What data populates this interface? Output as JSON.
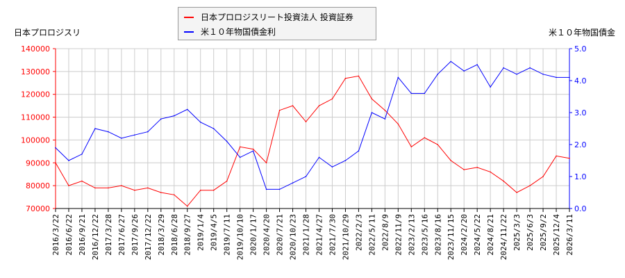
{
  "chart_data": {
    "type": "line",
    "left_axis_label": "日本プロロジスリ",
    "right_axis_label": "米１０年物国債金",
    "legend_placement": "top-center",
    "grid": true,
    "x": [
      "2016/3/22",
      "2016/6/22",
      "2016/9/21",
      "2016/12/22",
      "2017/3/28",
      "2017/6/27",
      "2017/9/26",
      "2017/12/22",
      "2018/3/29",
      "2018/6/28",
      "2018/9/27",
      "2019/1/4",
      "2019/4/5",
      "2019/7/11",
      "2019/10/10",
      "2020/1/17",
      "2020/4/20",
      "2020/7/21",
      "2020/10/23",
      "2021/1/28",
      "2021/4/27",
      "2021/7/30",
      "2021/10/29",
      "2022/2/3",
      "2022/5/11",
      "2022/8/9",
      "2022/11/9",
      "2023/2/13",
      "2023/5/16",
      "2023/8/16",
      "2023/11/15",
      "2024/2/20",
      "2024/5/22",
      "2024/8/21",
      "2024/11/22",
      "2025/3/3",
      "2025/6/3",
      "2025/9/2",
      "2025/12/4",
      "2026/3/11"
    ],
    "ylim_left": [
      70000,
      140000
    ],
    "yticks_left": [
      "70000",
      "80000",
      "90000",
      "100000",
      "110000",
      "120000",
      "130000",
      "140000"
    ],
    "ylim_right": [
      0,
      5
    ],
    "yticks_right": [
      "0.0",
      "1.0",
      "2.0",
      "3.0",
      "4.0",
      "5.0"
    ],
    "series": [
      {
        "name": "日本プロロジスリート投資法人 投資証券",
        "axis": "left",
        "color": "#ff0000",
        "values": [
          90000,
          80000,
          82000,
          79000,
          79000,
          80000,
          78000,
          79000,
          77000,
          76000,
          71000,
          78000,
          78000,
          82000,
          97000,
          96000,
          90000,
          113000,
          115000,
          108000,
          115000,
          118000,
          127000,
          128000,
          118000,
          113000,
          107000,
          97000,
          101000,
          98000,
          91000,
          87000,
          88000,
          86000,
          82000,
          77000,
          80000,
          84000,
          93000,
          92000
        ]
      },
      {
        "name": "米１０年物国債金利",
        "axis": "right",
        "color": "#0000ff",
        "values": [
          1.9,
          1.5,
          1.7,
          2.5,
          2.4,
          2.2,
          2.3,
          2.4,
          2.8,
          2.9,
          3.1,
          2.7,
          2.5,
          2.1,
          1.6,
          1.8,
          0.6,
          0.6,
          0.8,
          1.0,
          1.6,
          1.3,
          1.5,
          1.8,
          3.0,
          2.8,
          4.1,
          3.6,
          3.6,
          4.2,
          4.6,
          4.3,
          4.5,
          3.8,
          4.4,
          4.2,
          4.4,
          4.2,
          4.1,
          4.1
        ]
      }
    ]
  }
}
